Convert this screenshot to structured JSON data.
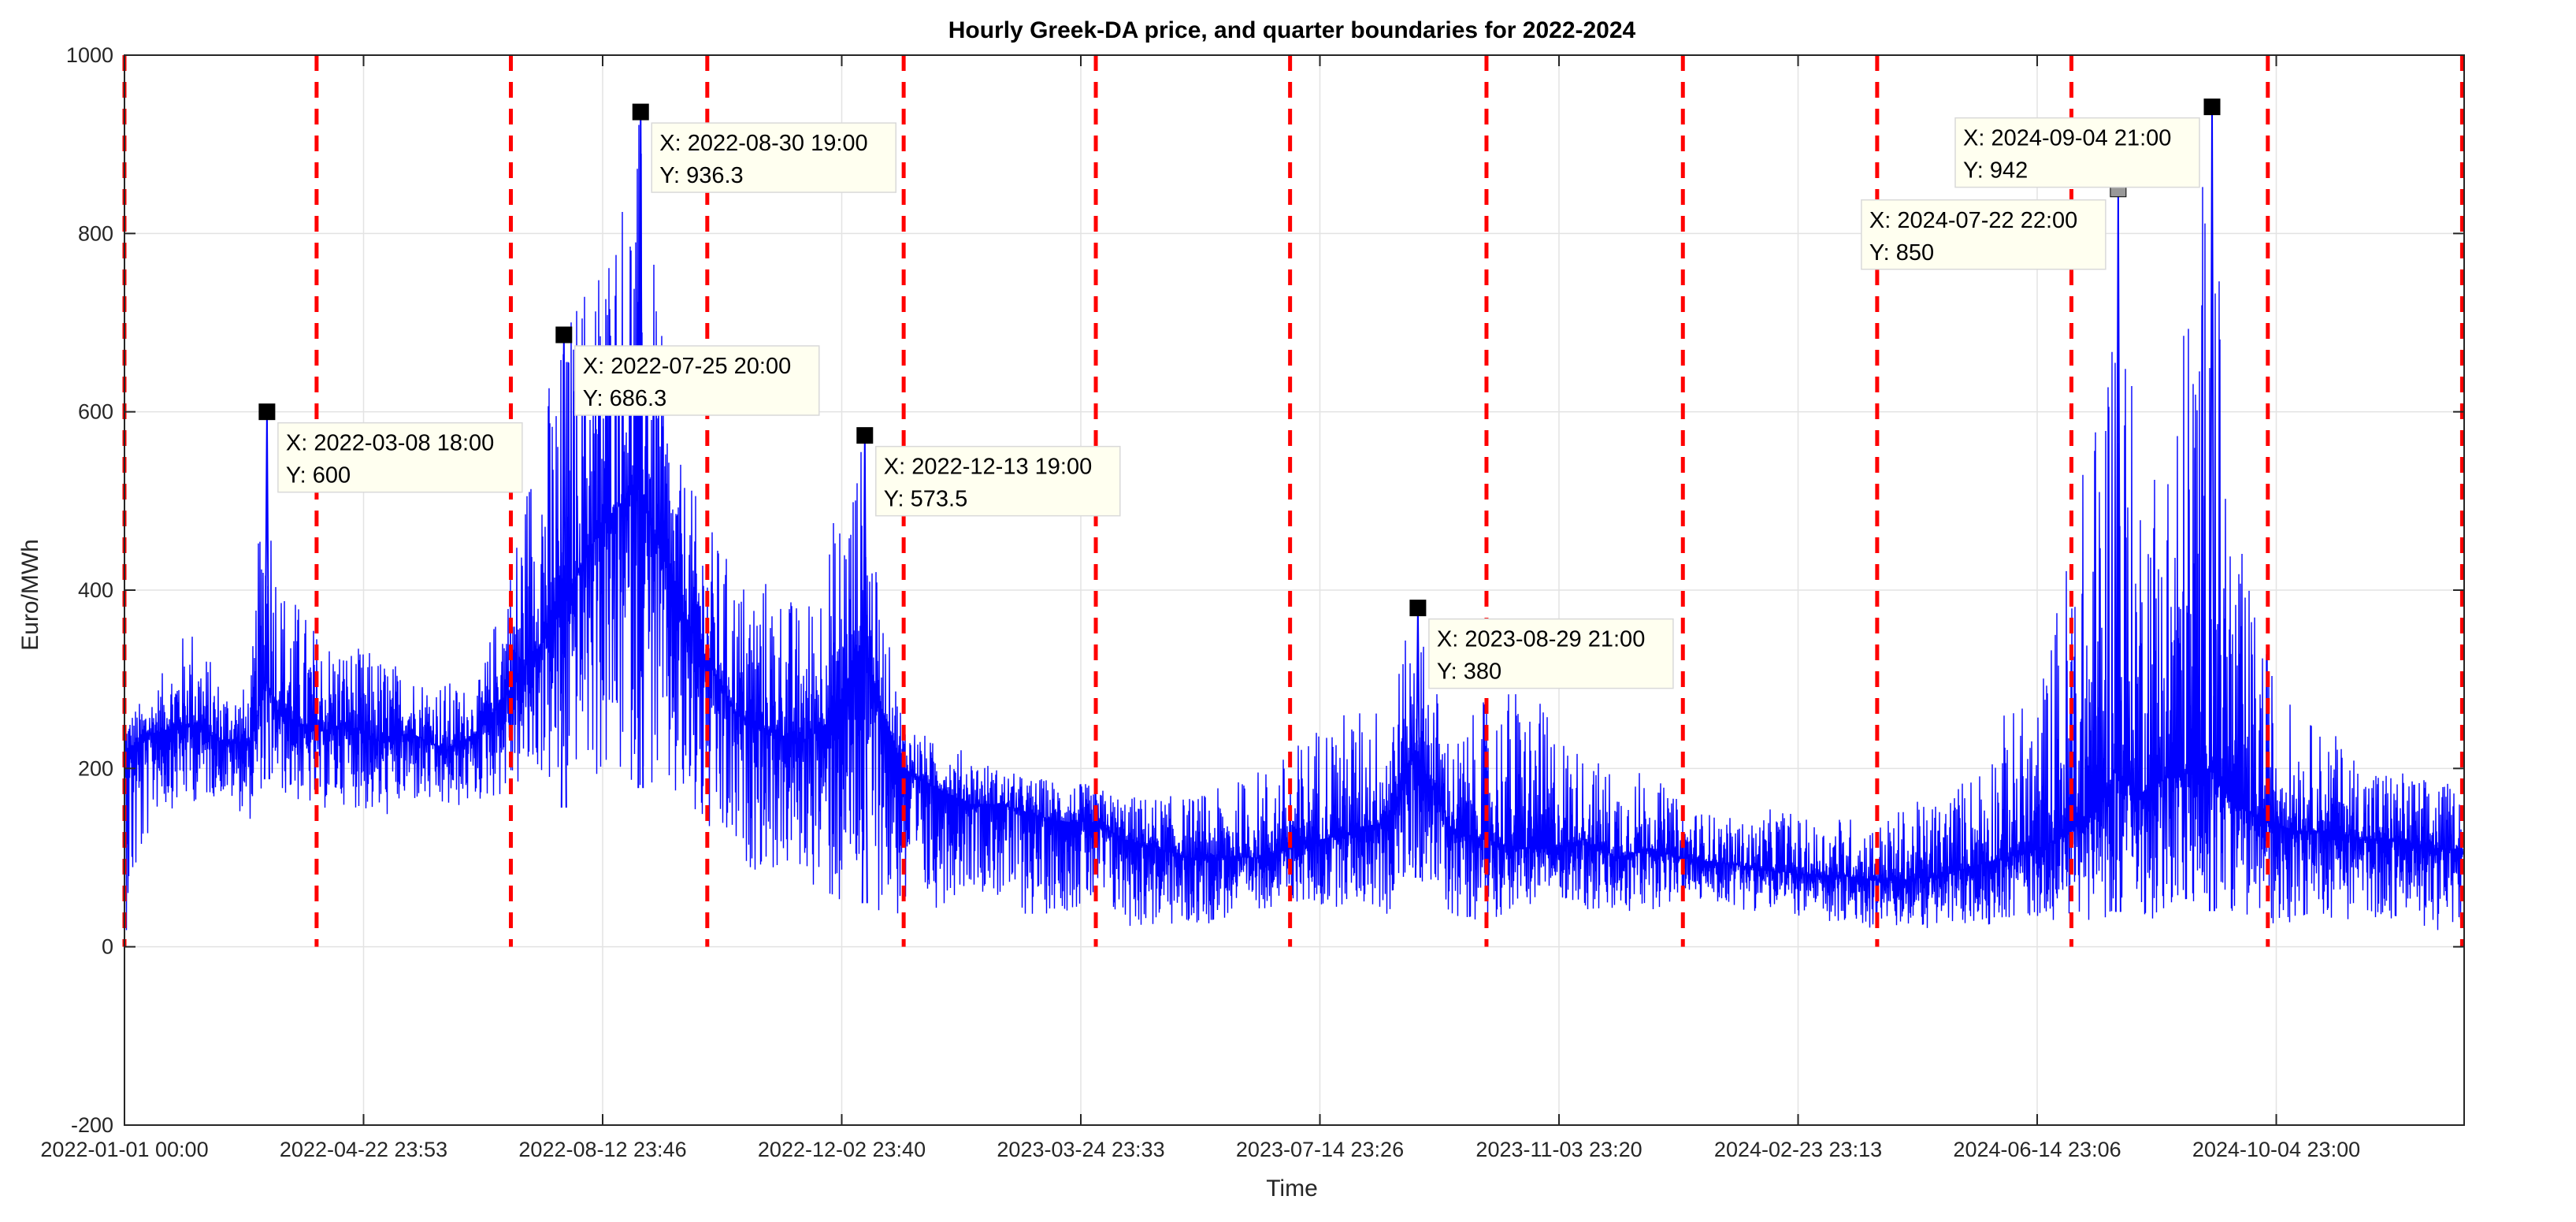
{
  "chart_data": {
    "type": "line",
    "title": "Hourly Greek-DA price, and quarter boundaries for 2022-2024",
    "xlabel": "Time",
    "ylabel": "Euro/MWh",
    "xlim": [
      "2022-01-01 00:00",
      "2024-12-31 23:00"
    ],
    "ylim": [
      -200,
      1000
    ],
    "yticks": [
      -200,
      0,
      200,
      400,
      600,
      800,
      1000
    ],
    "xticks": [
      {
        "label": "2022-01-01 00:00",
        "t": "2022-01-01 00:00"
      },
      {
        "label": "2022-04-22 23:53",
        "t": "2022-04-22 23:53"
      },
      {
        "label": "2022-08-12 23:46",
        "t": "2022-08-12 23:46"
      },
      {
        "label": "2022-12-02 23:40",
        "t": "2022-12-02 23:40"
      },
      {
        "label": "2023-03-24 23:33",
        "t": "2023-03-24 23:33"
      },
      {
        "label": "2023-07-14 23:26",
        "t": "2023-07-14 23:26"
      },
      {
        "label": "2023-11-03 23:20",
        "t": "2023-11-03 23:20"
      },
      {
        "label": "2024-02-23 23:13",
        "t": "2024-02-23 23:13"
      },
      {
        "label": "2024-06-14 23:06",
        "t": "2024-06-14 23:06"
      },
      {
        "label": "2024-10-04 23:00",
        "t": "2024-10-04 23:00"
      }
    ],
    "grid": true,
    "series": [
      {
        "color": "#0000ff",
        "sampling": "approximate envelope of hourly prices",
        "x": [
          "2022-01-01",
          "2022-01-15",
          "2022-02-01",
          "2022-02-15",
          "2022-03-01",
          "2022-03-08",
          "2022-03-15",
          "2022-04-01",
          "2022-04-15",
          "2022-05-01",
          "2022-05-15",
          "2022-06-01",
          "2022-06-15",
          "2022-07-01",
          "2022-07-15",
          "2022-07-25",
          "2022-08-01",
          "2022-08-15",
          "2022-08-30",
          "2022-09-15",
          "2022-10-01",
          "2022-10-15",
          "2022-11-01",
          "2022-11-15",
          "2022-12-01",
          "2022-12-13",
          "2022-12-20",
          "2023-01-01",
          "2023-01-15",
          "2023-02-01",
          "2023-02-15",
          "2023-03-01",
          "2023-03-15",
          "2023-04-01",
          "2023-04-15",
          "2023-05-01",
          "2023-05-15",
          "2023-06-01",
          "2023-06-15",
          "2023-07-01",
          "2023-07-15",
          "2023-08-01",
          "2023-08-15",
          "2023-08-29",
          "2023-09-15",
          "2023-10-01",
          "2023-10-15",
          "2023-11-01",
          "2023-11-15",
          "2023-12-01",
          "2023-12-15",
          "2024-01-01",
          "2024-01-15",
          "2024-02-01",
          "2024-02-15",
          "2024-03-01",
          "2024-03-15",
          "2024-04-01",
          "2024-04-15",
          "2024-05-01",
          "2024-05-15",
          "2024-06-01",
          "2024-06-15",
          "2024-07-01",
          "2024-07-15",
          "2024-07-22",
          "2024-08-01",
          "2024-08-15",
          "2024-09-04",
          "2024-09-15",
          "2024-10-01",
          "2024-10-15",
          "2024-11-01",
          "2024-11-15",
          "2024-12-01",
          "2024-12-15",
          "2024-12-31"
        ],
        "low": [
          10,
          150,
          160,
          170,
          140,
          190,
          170,
          150,
          160,
          140,
          160,
          150,
          160,
          170,
          190,
          150,
          200,
          170,
          180,
          140,
          110,
          90,
          80,
          80,
          30,
          50,
          40,
          20,
          40,
          70,
          50,
          30,
          40,
          40,
          20,
          20,
          20,
          30,
          40,
          50,
          40,
          50,
          30,
          80,
          30,
          30,
          40,
          60,
          40,
          30,
          40,
          50,
          50,
          40,
          40,
          30,
          20,
          20,
          20,
          20,
          20,
          30,
          30,
          30,
          30,
          40,
          30,
          30,
          40,
          40,
          20,
          30,
          30,
          30,
          30,
          20,
          10
        ],
        "mid": [
          220,
          240,
          250,
          230,
          230,
          300,
          260,
          240,
          250,
          230,
          240,
          220,
          240,
          290,
          340,
          380,
          420,
          480,
          520,
          400,
          320,
          260,
          240,
          230,
          260,
          350,
          280,
          200,
          180,
          160,
          160,
          150,
          140,
          140,
          120,
          110,
          100,
          100,
          100,
          110,
          120,
          130,
          140,
          220,
          130,
          120,
          110,
          110,
          120,
          100,
          110,
          100,
          95,
          90,
          85,
          80,
          80,
          75,
          75,
          80,
          90,
          100,
          110,
          130,
          160,
          200,
          170,
          190,
          200,
          160,
          140,
          130,
          130,
          120,
          120,
          110,
          110
        ],
        "high": [
          260,
          290,
          370,
          300,
          290,
          600,
          420,
          360,
          340,
          330,
          310,
          300,
          290,
          440,
          620,
          686.3,
          750,
          820,
          936.3,
          560,
          480,
          420,
          420,
          380,
          500,
          573.5,
          400,
          260,
          230,
          220,
          200,
          190,
          190,
          180,
          170,
          170,
          170,
          180,
          200,
          220,
          260,
          270,
          280,
          380,
          230,
          280,
          300,
          260,
          220,
          200,
          200,
          160,
          150,
          140,
          160,
          140,
          150,
          140,
          160,
          170,
          200,
          270,
          280,
          480,
          650,
          850,
          560,
          600,
          942,
          480,
          330,
          260,
          240,
          210,
          200,
          190,
          180
        ]
      }
    ],
    "quarter_boundaries": [
      "2022-01-01",
      "2022-04-01",
      "2022-07-01",
      "2022-10-01",
      "2023-01-01",
      "2023-04-01",
      "2023-07-01",
      "2023-10-01",
      "2024-01-01",
      "2024-04-01",
      "2024-07-01",
      "2024-10-01",
      "2024-12-31"
    ],
    "boundary_color": "#ff0000",
    "data_tips": [
      {
        "t": "2022-03-08 18:00",
        "y": 600,
        "x_text": "X: 2022-03-08 18:00",
        "y_text": "Y: 600",
        "marker": "#000000",
        "side": "right"
      },
      {
        "t": "2022-07-25 20:00",
        "y": 686.3,
        "x_text": "X: 2022-07-25 20:00",
        "y_text": "Y: 686.3",
        "marker": "#000000",
        "side": "right"
      },
      {
        "t": "2022-08-30 19:00",
        "y": 936.3,
        "x_text": "X: 2022-08-30 19:00",
        "y_text": "Y: 936.3",
        "marker": "#000000",
        "side": "right"
      },
      {
        "t": "2022-12-13 19:00",
        "y": 573.5,
        "x_text": "X: 2022-12-13 19:00",
        "y_text": "Y: 573.5",
        "marker": "#000000",
        "side": "right"
      },
      {
        "t": "2023-08-29 21:00",
        "y": 380,
        "x_text": "X: 2023-08-29 21:00",
        "y_text": "Y: 380",
        "marker": "#000000",
        "side": "right"
      },
      {
        "t": "2024-07-22 22:00",
        "y": 850,
        "x_text": "X: 2024-07-22 22:00",
        "y_text": "Y: 850",
        "marker": "#999999",
        "side": "left"
      },
      {
        "t": "2024-09-04 21:00",
        "y": 942,
        "x_text": "X: 2024-09-04 21:00",
        "y_text": "Y: 942",
        "marker": "#000000",
        "side": "left"
      }
    ]
  }
}
